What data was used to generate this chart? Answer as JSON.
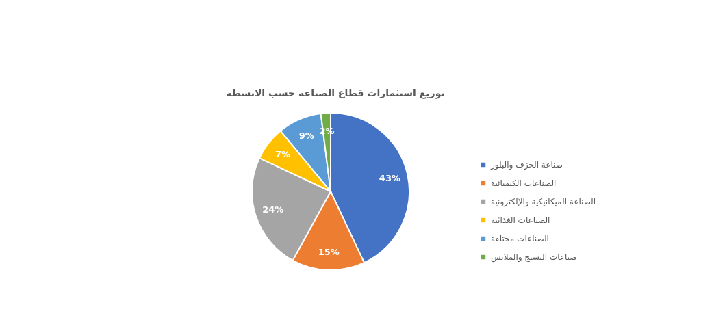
{
  "chart_data": {
    "type": "pie",
    "title": "توزيع استثمارات قطاع الصناعة حسب الانشطة",
    "categories": [
      "صناعة الخزف والبلور",
      "الصناعات الكيميائية",
      "الصناعة الميكانيكية والإلكترونية",
      "الصناعات الغذائية",
      "الصناعات مختلفة",
      "صناعات النسيج والملابس"
    ],
    "values": [
      43,
      15,
      24,
      7,
      9,
      2
    ],
    "colors": [
      "#4472c4",
      "#ed7d31",
      "#a5a5a5",
      "#ffc000",
      "#5b9bd5",
      "#70ad47"
    ],
    "value_labels": [
      "43%",
      "15%",
      "24%",
      "7%",
      "9%",
      "2%"
    ],
    "legend": "right"
  }
}
